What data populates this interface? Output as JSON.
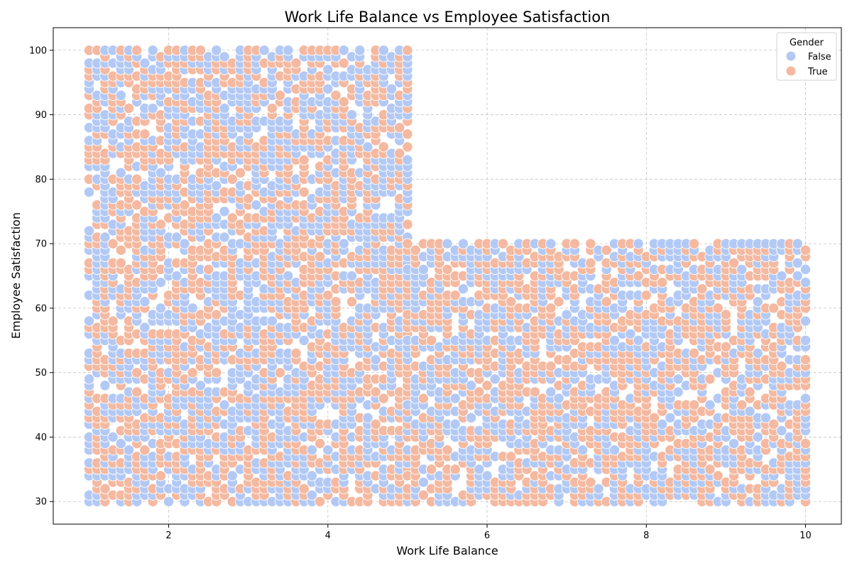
{
  "chart_data": {
    "type": "scatter",
    "title": "Work Life Balance vs Employee Satisfaction",
    "xlabel": "Work Life Balance",
    "ylabel": "Employee Satisfaction",
    "xlim": [
      0.55,
      10.45
    ],
    "ylim": [
      26.5,
      103.5
    ],
    "xticks": [
      2,
      4,
      6,
      8,
      10
    ],
    "yticks": [
      30,
      40,
      50,
      60,
      70,
      80,
      90,
      100
    ],
    "grid": true,
    "legend": {
      "title": "Gender",
      "placement": "top-right",
      "entries": [
        "False",
        "True"
      ]
    },
    "series": [
      {
        "name": "False",
        "color": "#b3c9f5"
      },
      {
        "name": "True",
        "color": "#f4b9a0"
      }
    ],
    "data_regions": [
      {
        "x": [
          1.0,
          5.0
        ],
        "y": [
          30,
          100
        ],
        "x_step": 0.1,
        "y_step": 1
      },
      {
        "x": [
          5.0,
          10.0
        ],
        "y": [
          30,
          70
        ],
        "x_step": 0.1,
        "y_step": 1
      }
    ],
    "note_points": "Dense overlapping markers cover the full grid within each region, colored by gender."
  }
}
